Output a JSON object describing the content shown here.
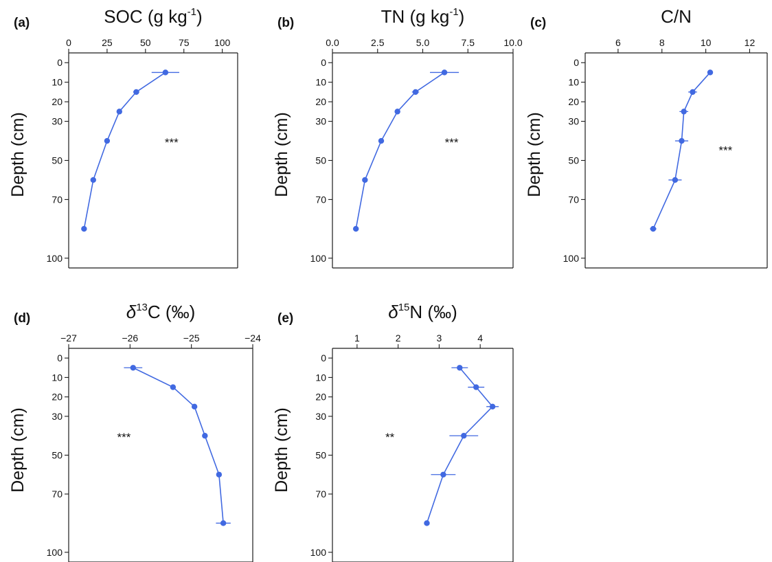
{
  "figure": {
    "series_color": "#4169E1",
    "ylabel": "Depth (cm)",
    "y_axis": {
      "ylim": [
        -5,
        105
      ],
      "inverted": true,
      "ticks": [
        0,
        10,
        20,
        30,
        50,
        70,
        100
      ],
      "tick_labels": [
        "0",
        "10",
        "20",
        "30",
        "50",
        "70",
        "100"
      ]
    }
  },
  "chart_data": [
    {
      "panel": "(a)",
      "type": "line",
      "title_main": "SOC (g kg",
      "title_sup": "-1",
      "title_end": ")",
      "xlabel": "SOC (g kg-1)",
      "ylabel": "Depth (cm)",
      "xlim": [
        0,
        110
      ],
      "x_ticks": [
        0,
        25,
        50,
        75,
        100
      ],
      "x_tick_labels": [
        "0",
        "25",
        "50",
        "75",
        "100"
      ],
      "depth": [
        5,
        15,
        25,
        40,
        60,
        85
      ],
      "values": [
        63,
        44,
        33,
        25,
        16,
        10
      ],
      "error": [
        9,
        2,
        1.5,
        1.5,
        1,
        1
      ],
      "significance": "***",
      "sig_pos": {
        "x": 67,
        "y": 40
      }
    },
    {
      "panel": "(b)",
      "type": "line",
      "title_main": "TN (g kg",
      "title_sup": "-1",
      "title_end": ")",
      "xlabel": "TN (g kg-1)",
      "ylabel": "Depth (cm)",
      "xlim": [
        0,
        10
      ],
      "x_ticks": [
        0,
        2.5,
        5,
        7.5,
        10
      ],
      "x_tick_labels": [
        "0.0",
        "2.5",
        "5.0",
        "7.5",
        "10.0"
      ],
      "depth": [
        5,
        15,
        25,
        40,
        60,
        85
      ],
      "values": [
        6.2,
        4.6,
        3.6,
        2.7,
        1.8,
        1.3
      ],
      "error": [
        0.8,
        0.2,
        0.15,
        0.1,
        0.1,
        0.08
      ],
      "significance": "***",
      "sig_pos": {
        "x": 6.6,
        "y": 40
      }
    },
    {
      "panel": "(c)",
      "type": "line",
      "title_main": "C/N",
      "title_sup": "",
      "title_end": "",
      "xlabel": "C/N",
      "ylabel": "Depth (cm)",
      "xlim": [
        4.5,
        12.8
      ],
      "x_ticks": [
        6,
        8,
        10,
        12
      ],
      "x_tick_labels": [
        "6",
        "8",
        "10",
        "12"
      ],
      "depth": [
        5,
        15,
        25,
        40,
        60,
        85
      ],
      "values": [
        10.2,
        9.4,
        9.0,
        8.9,
        8.6,
        7.6
      ],
      "error": [
        0.05,
        0.2,
        0.2,
        0.3,
        0.3,
        0.15
      ],
      "significance": "***",
      "sig_pos": {
        "x": 10.9,
        "y": 44
      }
    },
    {
      "panel": "(d)",
      "type": "line",
      "title_main": "δ",
      "title_sup": "13",
      "title_end": "C (‰)",
      "xlabel": "δ13C (‰)",
      "ylabel": "Depth (cm)",
      "xlim": [
        -27,
        -24
      ],
      "x_ticks": [
        -27,
        -26,
        -25,
        -24
      ],
      "x_tick_labels": [
        "−27",
        "−26",
        "−25",
        "−24"
      ],
      "depth": [
        5,
        15,
        25,
        40,
        60,
        85
      ],
      "values": [
        -25.95,
        -25.3,
        -24.95,
        -24.78,
        -24.55,
        -24.48
      ],
      "error": [
        0.15,
        0.04,
        0.03,
        0.04,
        0.04,
        0.12
      ],
      "significance": "***",
      "sig_pos": {
        "x": -26.1,
        "y": 40
      }
    },
    {
      "panel": "(e)",
      "type": "line",
      "title_main": "δ",
      "title_sup": "15",
      "title_end": "N (‰)",
      "xlabel": "δ15N (‰)",
      "ylabel": "Depth (cm)",
      "xlim": [
        0.4,
        4.8
      ],
      "x_ticks": [
        1,
        2,
        3,
        4
      ],
      "x_tick_labels": [
        "1",
        "2",
        "3",
        "4"
      ],
      "depth": [
        5,
        15,
        25,
        40,
        60,
        85
      ],
      "values": [
        3.5,
        3.9,
        4.3,
        3.6,
        3.1,
        2.7
      ],
      "error": [
        0.2,
        0.2,
        0.15,
        0.35,
        0.3,
        0.05
      ],
      "significance": "**",
      "sig_pos": {
        "x": 1.8,
        "y": 40
      }
    }
  ]
}
